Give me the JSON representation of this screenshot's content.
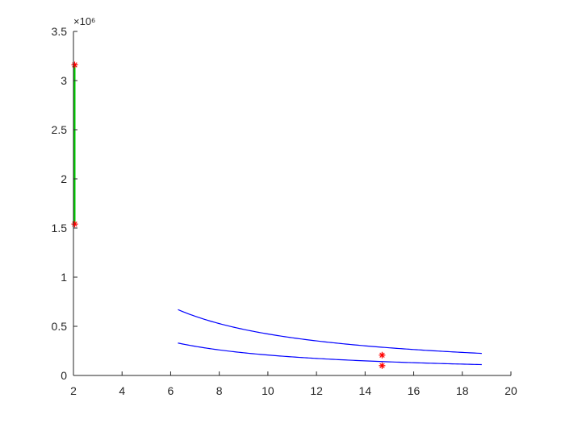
{
  "chart_data": {
    "type": "line",
    "title": "",
    "xlabel": "",
    "ylabel": "",
    "xlim": [
      2,
      20
    ],
    "ylim": [
      0,
      3500000
    ],
    "x_ticks": [
      2,
      4,
      6,
      8,
      10,
      12,
      14,
      16,
      18,
      20
    ],
    "x_tick_labels": [
      "2",
      "4",
      "6",
      "8",
      "10",
      "12",
      "14",
      "16",
      "18",
      "20"
    ],
    "y_ticks": [
      0,
      500000,
      1000000,
      1500000,
      2000000,
      2500000,
      3000000,
      3500000
    ],
    "y_tick_labels": [
      "0",
      "0.5",
      "1",
      "1.5",
      "2",
      "2.5",
      "3",
      "3.5"
    ],
    "y_exponent_label": "×10⁶",
    "grid": false,
    "legend": "none",
    "series": [
      {
        "color": "#0000ff",
        "style": "curve",
        "points": [
          [
            6.3,
            670000
          ],
          [
            7,
            600000
          ],
          [
            8,
            525000
          ],
          [
            9,
            465000
          ],
          [
            10,
            420000
          ],
          [
            11,
            380000
          ],
          [
            12,
            348000
          ],
          [
            13,
            320000
          ],
          [
            14,
            294000
          ],
          [
            14.7,
            207000
          ],
          [
            15,
            276000
          ],
          [
            16,
            260000
          ],
          [
            17,
            247000
          ],
          [
            18,
            236000
          ],
          [
            18.8,
            142000
          ]
        ]
      },
      {
        "color": "#0000ff",
        "style": "curve",
        "points": [
          [
            6.3,
            330000
          ],
          [
            7,
            297000
          ],
          [
            8,
            260000
          ],
          [
            9,
            232000
          ],
          [
            10,
            208000
          ],
          [
            11,
            189000
          ],
          [
            12,
            173000
          ],
          [
            13,
            160000
          ],
          [
            14,
            149000
          ],
          [
            14.7,
            100000
          ],
          [
            15,
            139000
          ],
          [
            16,
            130000
          ],
          [
            17,
            123000
          ],
          [
            18,
            117000
          ],
          [
            18.8,
            72000
          ]
        ]
      },
      {
        "color": "#00cc00",
        "style": "line",
        "points": [
          [
            2.05,
            1540000
          ],
          [
            2.05,
            3160000
          ]
        ]
      }
    ],
    "markers": {
      "symbol": "*",
      "color": "#ff0000",
      "points": [
        [
          2.05,
          3160000
        ],
        [
          2.05,
          1540000
        ],
        [
          14.7,
          207000
        ],
        [
          14.7,
          100000
        ]
      ]
    }
  }
}
